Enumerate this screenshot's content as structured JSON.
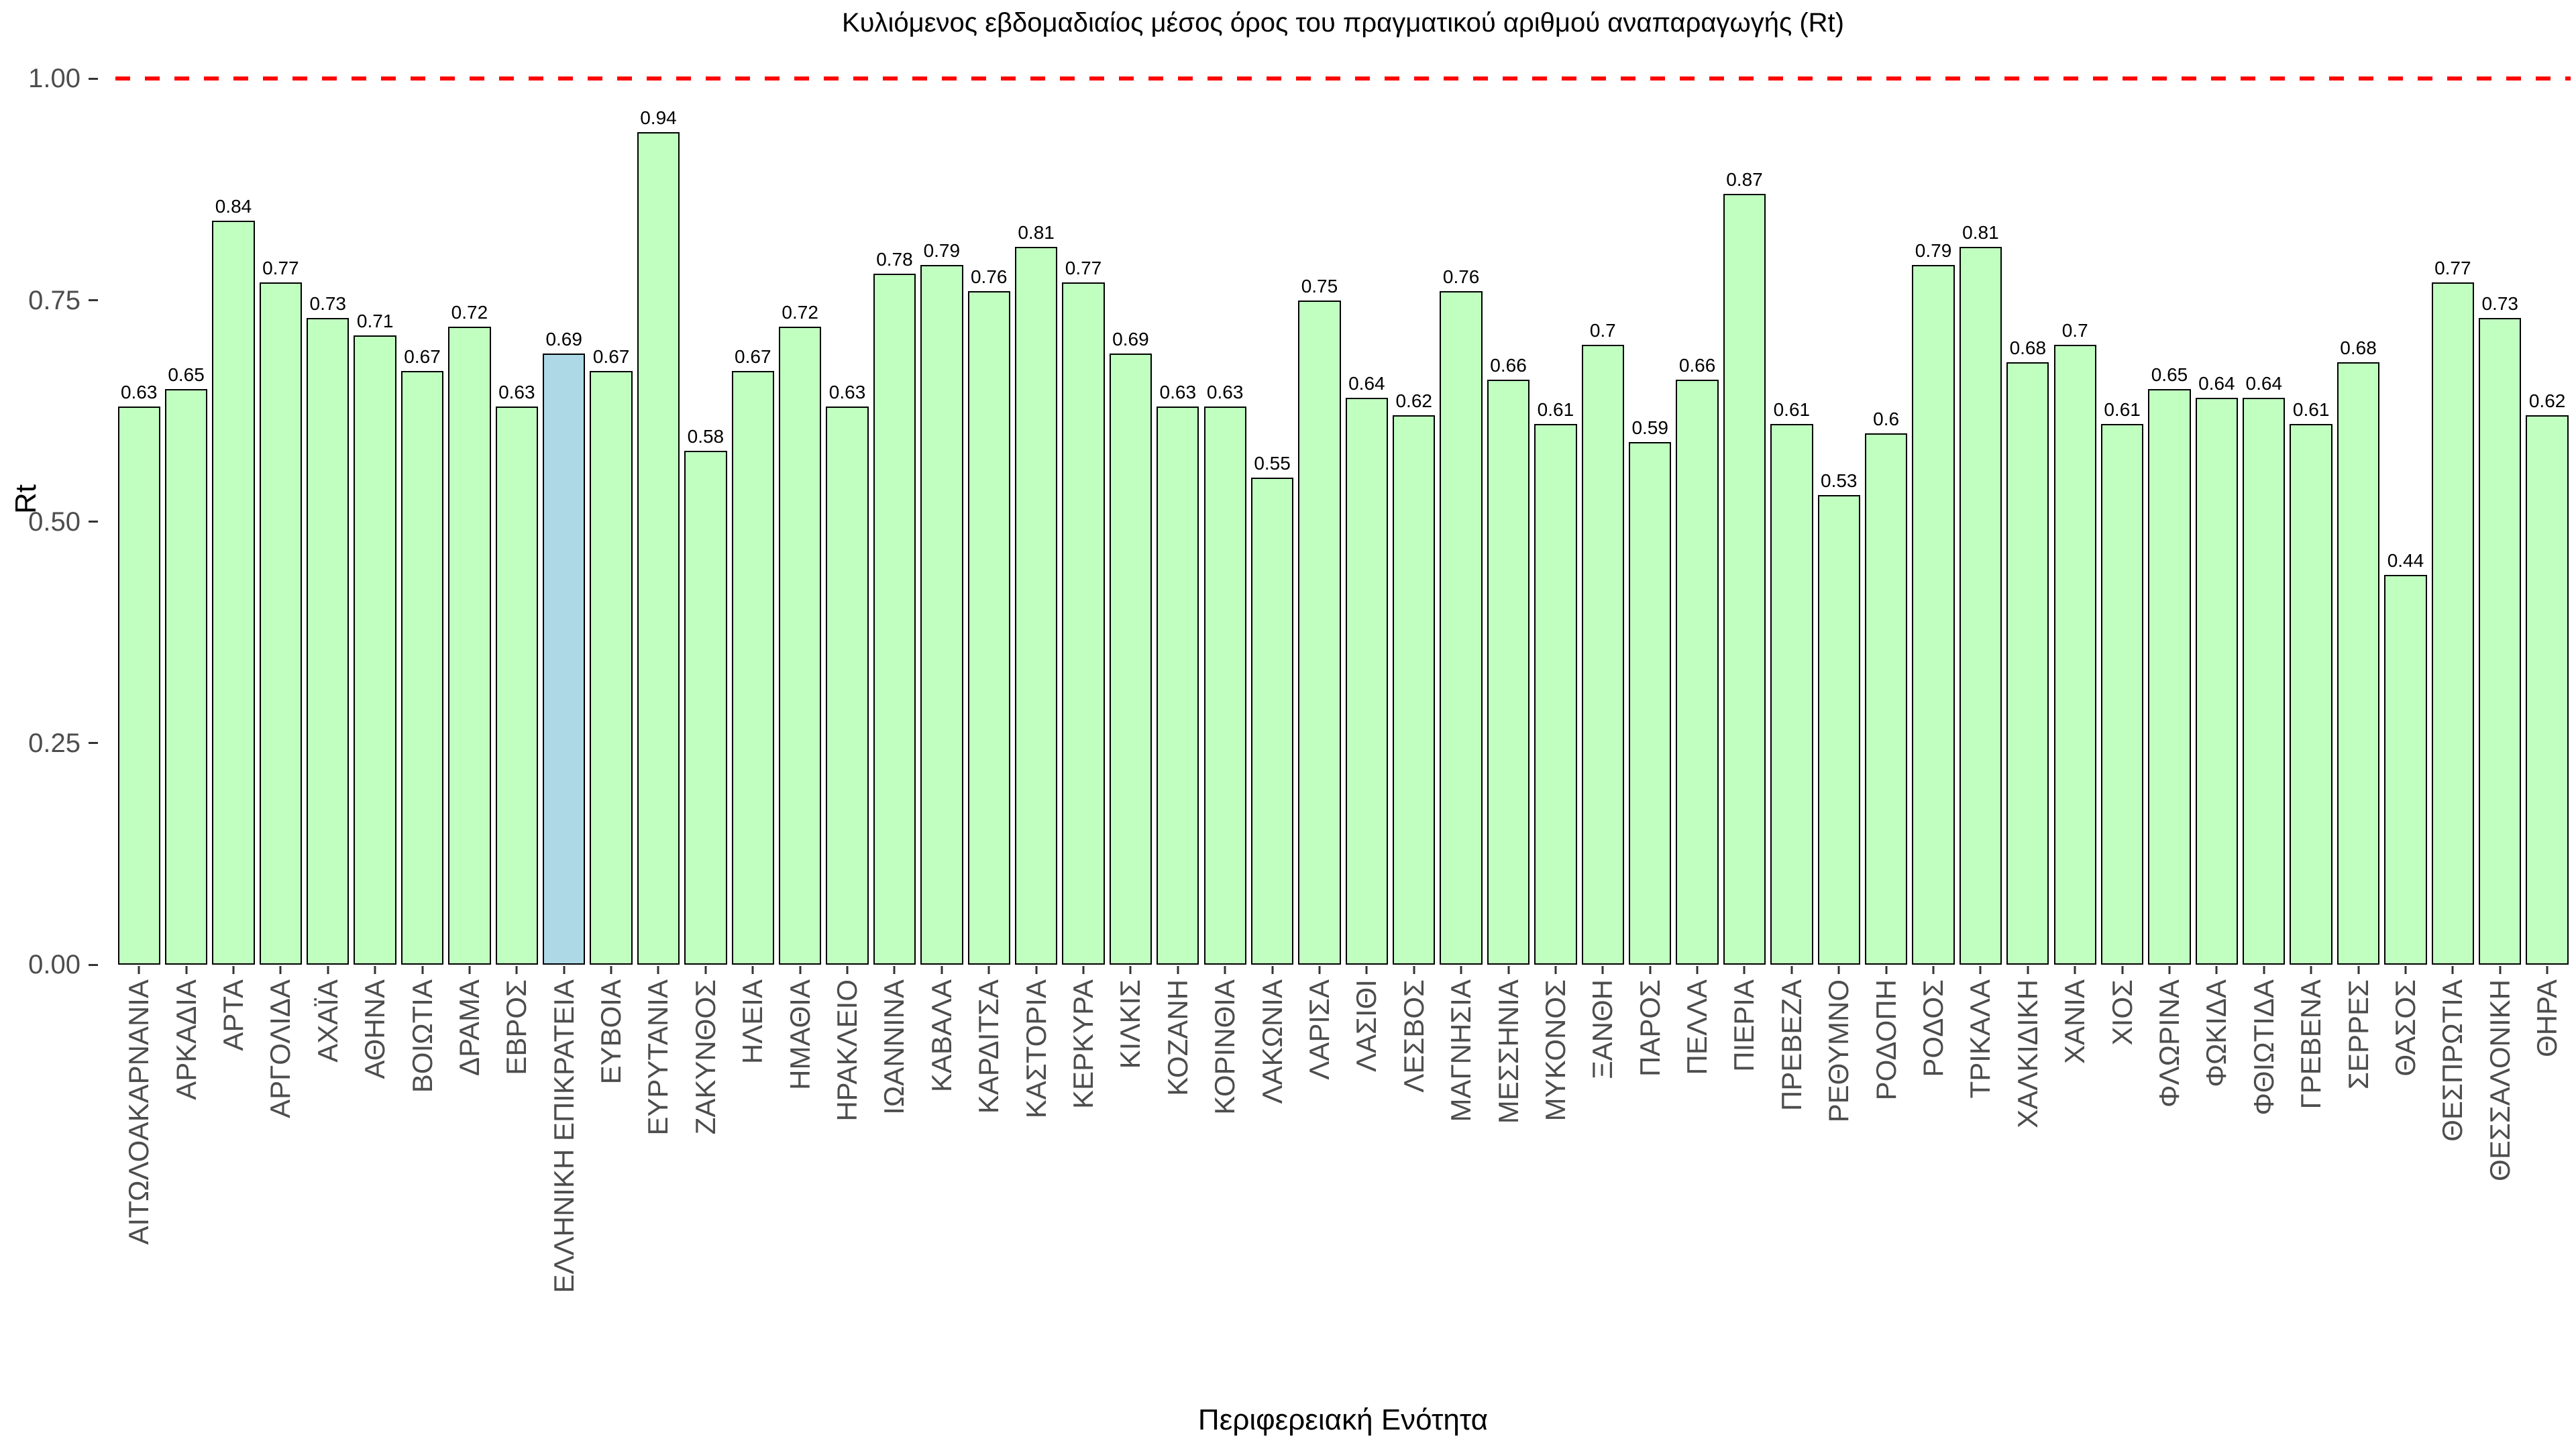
{
  "page": {
    "background": "#ffffff"
  },
  "chart_data": {
    "type": "bar",
    "title": "Κυλιόμενος εβδομαδιαίος μέσος όρος του πραγματικού αριθμού αναπαραγωγής (Rt)",
    "xlabel": "Περιφερειακή Ενότητα",
    "ylabel": "Rt",
    "ylim": [
      0,
      1.017
    ],
    "grid": false,
    "legend": false,
    "reference_line": {
      "value": 1.0,
      "style": "dashed",
      "color": "#ff0000"
    },
    "yticks": [
      {
        "value": 0.0,
        "label": "0.00"
      },
      {
        "value": 0.25,
        "label": "0.25"
      },
      {
        "value": 0.5,
        "label": "0.50"
      },
      {
        "value": 0.75,
        "label": "0.75"
      },
      {
        "value": 1.0,
        "label": "1.00"
      }
    ],
    "bar_fill": "#c1ffc1",
    "highlight_fill": "#add8e6",
    "highlight_category": "ΕΛΛΗΝΙΚΗ ΕΠΙΚΡΑΤΕΙΑ",
    "bar_border": "#000000",
    "axis_text_color": "#4d4d4d",
    "title_color": "#000000",
    "value_label_color": "#000000",
    "bars": [
      {
        "category": "ΑΙΤΩΛΟΑΚΑΡΝΑΝΙΑ",
        "value": 0.63,
        "label": "0.63"
      },
      {
        "category": "ΑΡΚΑΔΙΑ",
        "value": 0.65,
        "label": "0.65"
      },
      {
        "category": "ΑΡΤΑ",
        "value": 0.84,
        "label": "0.84"
      },
      {
        "category": "ΑΡΓΟΛΙΔΑ",
        "value": 0.77,
        "label": "0.77"
      },
      {
        "category": "ΑΧΑΪΑ",
        "value": 0.73,
        "label": "0.73"
      },
      {
        "category": "ΑΘΗΝΑ",
        "value": 0.71,
        "label": "0.71"
      },
      {
        "category": "ΒΟΙΩΤΙΑ",
        "value": 0.67,
        "label": "0.67"
      },
      {
        "category": "ΔΡΑΜΑ",
        "value": 0.72,
        "label": "0.72"
      },
      {
        "category": "ΕΒΡΟΣ",
        "value": 0.63,
        "label": "0.63"
      },
      {
        "category": "ΕΛΛΗΝΙΚΗ ΕΠΙΚΡΑΤΕΙΑ",
        "value": 0.69,
        "label": "0.69"
      },
      {
        "category": "ΕΥΒΟΙΑ",
        "value": 0.67,
        "label": "0.67"
      },
      {
        "category": "ΕΥΡΥΤΑΝΙΑ",
        "value": 0.94,
        "label": "0.94"
      },
      {
        "category": "ΖΑΚΥΝΘΟΣ",
        "value": 0.58,
        "label": "0.58"
      },
      {
        "category": "ΗΛΕΙΑ",
        "value": 0.67,
        "label": "0.67"
      },
      {
        "category": "ΗΜΑΘΙΑ",
        "value": 0.72,
        "label": "0.72"
      },
      {
        "category": "ΗΡΑΚΛΕΙΟ",
        "value": 0.63,
        "label": "0.63"
      },
      {
        "category": "ΙΩΑΝΝΙΝΑ",
        "value": 0.78,
        "label": "0.78"
      },
      {
        "category": "ΚΑΒΑΛΑ",
        "value": 0.79,
        "label": "0.79"
      },
      {
        "category": "ΚΑΡΔΙΤΣΑ",
        "value": 0.76,
        "label": "0.76"
      },
      {
        "category": "ΚΑΣΤΟΡΙΑ",
        "value": 0.81,
        "label": "0.81"
      },
      {
        "category": "ΚΕΡΚΥΡΑ",
        "value": 0.77,
        "label": "0.77"
      },
      {
        "category": "ΚΙΛΚΙΣ",
        "value": 0.69,
        "label": "0.69"
      },
      {
        "category": "ΚΟΖΑΝΗ",
        "value": 0.63,
        "label": "0.63"
      },
      {
        "category": "ΚΟΡΙΝΘΙΑ",
        "value": 0.63,
        "label": "0.63"
      },
      {
        "category": "ΛΑΚΩΝΙΑ",
        "value": 0.55,
        "label": "0.55"
      },
      {
        "category": "ΛΑΡΙΣΑ",
        "value": 0.75,
        "label": "0.75"
      },
      {
        "category": "ΛΑΣΙΘΙ",
        "value": 0.64,
        "label": "0.64"
      },
      {
        "category": "ΛΕΣΒΟΣ",
        "value": 0.62,
        "label": "0.62"
      },
      {
        "category": "ΜΑΓΝΗΣΙΑ",
        "value": 0.76,
        "label": "0.76"
      },
      {
        "category": "ΜΕΣΣΗΝΙΑ",
        "value": 0.66,
        "label": "0.66"
      },
      {
        "category": "ΜΥΚΟΝΟΣ",
        "value": 0.61,
        "label": "0.61"
      },
      {
        "category": "ΞΑΝΘΗ",
        "value": 0.7,
        "label": "0.7"
      },
      {
        "category": "ΠΑΡΟΣ",
        "value": 0.59,
        "label": "0.59"
      },
      {
        "category": "ΠΕΛΛΑ",
        "value": 0.66,
        "label": "0.66"
      },
      {
        "category": "ΠΙΕΡΙΑ",
        "value": 0.87,
        "label": "0.87"
      },
      {
        "category": "ΠΡΕΒΕΖΑ",
        "value": 0.61,
        "label": "0.61"
      },
      {
        "category": "ΡΕΘΥΜΝΟ",
        "value": 0.53,
        "label": "0.53"
      },
      {
        "category": "ΡΟΔΟΠΗ",
        "value": 0.6,
        "label": "0.6"
      },
      {
        "category": "ΡΟΔΟΣ",
        "value": 0.79,
        "label": "0.79"
      },
      {
        "category": "ΤΡΙΚΑΛΑ",
        "value": 0.81,
        "label": "0.81"
      },
      {
        "category": "ΧΑΛΚΙΔΙΚΗ",
        "value": 0.68,
        "label": "0.68"
      },
      {
        "category": "ΧΑΝΙΑ",
        "value": 0.7,
        "label": "0.7"
      },
      {
        "category": "ΧΙΟΣ",
        "value": 0.61,
        "label": "0.61"
      },
      {
        "category": "ΦΛΩΡΙΝΑ",
        "value": 0.65,
        "label": "0.65"
      },
      {
        "category": "ΦΩΚΙΔΑ",
        "value": 0.64,
        "label": "0.64"
      },
      {
        "category": "ΦΘΙΩΤΙΔΑ",
        "value": 0.64,
        "label": "0.64"
      },
      {
        "category": "ΓΡΕΒΕΝΑ",
        "value": 0.61,
        "label": "0.61"
      },
      {
        "category": "ΣΕΡΡΕΣ",
        "value": 0.68,
        "label": "0.68"
      },
      {
        "category": "ΘΑΣΟΣ",
        "value": 0.44,
        "label": "0.44"
      },
      {
        "category": "ΘΕΣΠΡΩΤΙΑ",
        "value": 0.77,
        "label": "0.77"
      },
      {
        "category": "ΘΕΣΣΑΛΟΝΙΚΗ",
        "value": 0.73,
        "label": "0.73"
      },
      {
        "category": "ΘΗΡΑ",
        "value": 0.62,
        "label": "0.62"
      }
    ]
  }
}
